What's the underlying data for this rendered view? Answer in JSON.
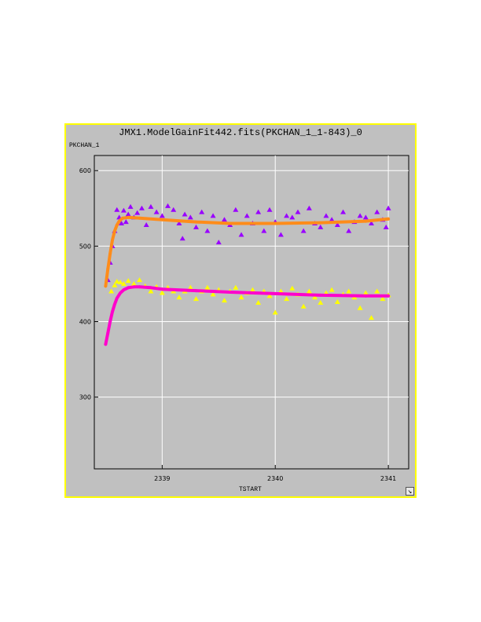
{
  "window": {
    "title": "JMX1.ModelGainFit442.fits(PKCHAN_1_1-843)_0"
  },
  "colors": {
    "frame_border": "#ffff00",
    "panel_bg": "#c0c0c0",
    "grid": "#ffffff",
    "series_upper_points": "#9900ff",
    "series_upper_fit": "#ff8c1a",
    "series_lower_points": "#ffff00",
    "series_lower_fit": "#ff00cc"
  },
  "icons": {
    "resize": "resize-arrow-icon"
  },
  "resize_glyph": "↘",
  "chart_data": {
    "type": "scatter",
    "title": "JMX1.ModelGainFit442.fits(PKCHAN_1_1-843)_0",
    "xlabel": "TSTART",
    "ylabel": "PKCHAN_1",
    "xlim": [
      2338.4,
      2341.18
    ],
    "ylim": [
      205,
      620
    ],
    "xticks": [
      2339,
      2340,
      2341
    ],
    "xtick_labels": [
      "2339",
      "2340",
      "2341"
    ],
    "yticks": [
      300,
      400,
      500,
      600
    ],
    "ytick_labels": [
      "300",
      "400",
      "500",
      "600"
    ],
    "grid": true,
    "series": [
      {
        "marker": "triangle",
        "color": "#9900ff",
        "x": [
          2338.52,
          2338.54,
          2338.56,
          2338.58,
          2338.6,
          2338.62,
          2338.64,
          2338.66,
          2338.68,
          2338.7,
          2338.72,
          2338.75,
          2338.78,
          2338.82,
          2338.86,
          2338.9,
          2338.95,
          2339.0,
          2339.05,
          2339.1,
          2339.15,
          2339.18,
          2339.2,
          2339.25,
          2339.3,
          2339.35,
          2339.4,
          2339.45,
          2339.5,
          2339.55,
          2339.6,
          2339.65,
          2339.7,
          2339.75,
          2339.8,
          2339.85,
          2339.9,
          2339.95,
          2340.0,
          2340.05,
          2340.1,
          2340.15,
          2340.2,
          2340.25,
          2340.3,
          2340.35,
          2340.4,
          2340.45,
          2340.5,
          2340.55,
          2340.6,
          2340.65,
          2340.7,
          2340.75,
          2340.8,
          2340.85,
          2340.9,
          2340.95,
          2341.0,
          2340.98
        ],
        "y": [
          455,
          478,
          500,
          520,
          548,
          538,
          530,
          547,
          532,
          542,
          552,
          538,
          544,
          550,
          528,
          552,
          545,
          540,
          553,
          548,
          530,
          510,
          542,
          538,
          525,
          545,
          520,
          540,
          505,
          535,
          528,
          548,
          515,
          540,
          530,
          545,
          520,
          548,
          532,
          515,
          540,
          538,
          545,
          520,
          550,
          530,
          525,
          540,
          535,
          528,
          545,
          520,
          532,
          540,
          538,
          530,
          545,
          535,
          550,
          525
        ]
      },
      {
        "marker": "line",
        "color": "#ff8c1a",
        "x": [
          2338.5,
          2338.52,
          2338.54,
          2338.56,
          2338.58,
          2338.6,
          2338.62,
          2338.65,
          2338.7,
          2338.8,
          2339.0,
          2339.3,
          2339.6,
          2340.0,
          2340.4,
          2340.8,
          2341.0
        ],
        "y": [
          447,
          470,
          490,
          508,
          520,
          528,
          533,
          537,
          538,
          537,
          535,
          532,
          530,
          530,
          531,
          533,
          536
        ]
      },
      {
        "marker": "triangle",
        "color": "#ffff00",
        "x": [
          2338.55,
          2338.58,
          2338.6,
          2338.63,
          2338.66,
          2338.7,
          2338.75,
          2338.8,
          2338.85,
          2338.9,
          2338.95,
          2339.0,
          2339.05,
          2339.1,
          2339.15,
          2339.2,
          2339.25,
          2339.3,
          2339.35,
          2339.4,
          2339.45,
          2339.5,
          2339.55,
          2339.6,
          2339.65,
          2339.7,
          2339.75,
          2339.8,
          2339.85,
          2339.9,
          2339.95,
          2340.0,
          2340.05,
          2340.1,
          2340.15,
          2340.2,
          2340.25,
          2340.3,
          2340.35,
          2340.4,
          2340.45,
          2340.5,
          2340.55,
          2340.6,
          2340.65,
          2340.7,
          2340.75,
          2340.8,
          2340.85,
          2340.9,
          2340.95,
          2341.0
        ],
        "y": [
          440,
          448,
          453,
          452,
          450,
          454,
          450,
          455,
          447,
          440,
          446,
          438,
          445,
          440,
          432,
          440,
          445,
          430,
          440,
          445,
          436,
          442,
          428,
          440,
          445,
          432,
          438,
          442,
          425,
          440,
          434,
          412,
          440,
          430,
          444,
          436,
          420,
          440,
          432,
          425,
          438,
          442,
          426,
          436,
          440,
          432,
          418,
          438,
          405,
          440,
          430,
          435
        ]
      },
      {
        "marker": "line",
        "color": "#ff00cc",
        "x": [
          2338.5,
          2338.52,
          2338.54,
          2338.56,
          2338.58,
          2338.6,
          2338.63,
          2338.66,
          2338.7,
          2338.75,
          2338.8,
          2338.9,
          2339.0,
          2339.3,
          2339.6,
          2340.0,
          2340.4,
          2340.8,
          2341.0
        ],
        "y": [
          370,
          385,
          400,
          413,
          423,
          431,
          438,
          442,
          445,
          446,
          446,
          445,
          443,
          441,
          439,
          437,
          435,
          434,
          434
        ]
      }
    ]
  }
}
